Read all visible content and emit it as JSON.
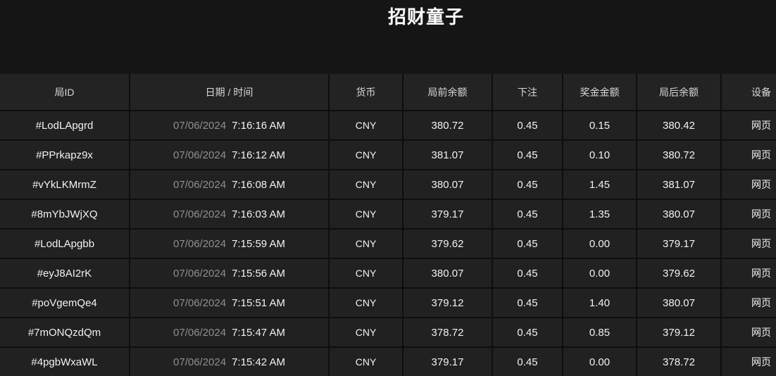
{
  "page": {
    "title": "招财童子"
  },
  "colors": {
    "page_bg": "#151515",
    "gap": "#0e0e0e",
    "header_bg": "#232323",
    "cell_bg": "#212121",
    "text": "#f2f2f2",
    "muted": "#8f8f8f",
    "title": "#ffffff",
    "header_text": "#d8d8d8"
  },
  "table": {
    "columns": [
      {
        "key": "id",
        "label": "局ID"
      },
      {
        "key": "datetime",
        "label": "日期 / 时间"
      },
      {
        "key": "currency",
        "label": "货币"
      },
      {
        "key": "balance_before",
        "label": "局前余额"
      },
      {
        "key": "bet",
        "label": "下注"
      },
      {
        "key": "win",
        "label": "奖金金额"
      },
      {
        "key": "balance_after",
        "label": "局后余额"
      },
      {
        "key": "device",
        "label": "设备"
      }
    ],
    "rows": [
      {
        "id": "#LodLApgrd",
        "date": "07/06/2024",
        "time": "7:16:16 AM",
        "currency": "CNY",
        "balance_before": "380.72",
        "bet": "0.45",
        "win": "0.15",
        "balance_after": "380.42",
        "device": "网页"
      },
      {
        "id": "#PPrkapz9x",
        "date": "07/06/2024",
        "time": "7:16:12 AM",
        "currency": "CNY",
        "balance_before": "381.07",
        "bet": "0.45",
        "win": "0.10",
        "balance_after": "380.72",
        "device": "网页"
      },
      {
        "id": "#vYkLKMrmZ",
        "date": "07/06/2024",
        "time": "7:16:08 AM",
        "currency": "CNY",
        "balance_before": "380.07",
        "bet": "0.45",
        "win": "1.45",
        "balance_after": "381.07",
        "device": "网页"
      },
      {
        "id": "#8mYbJWjXQ",
        "date": "07/06/2024",
        "time": "7:16:03 AM",
        "currency": "CNY",
        "balance_before": "379.17",
        "bet": "0.45",
        "win": "1.35",
        "balance_after": "380.07",
        "device": "网页"
      },
      {
        "id": "#LodLApgbb",
        "date": "07/06/2024",
        "time": "7:15:59 AM",
        "currency": "CNY",
        "balance_before": "379.62",
        "bet": "0.45",
        "win": "0.00",
        "balance_after": "379.17",
        "device": "网页"
      },
      {
        "id": "#eyJ8AI2rK",
        "date": "07/06/2024",
        "time": "7:15:56 AM",
        "currency": "CNY",
        "balance_before": "380.07",
        "bet": "0.45",
        "win": "0.00",
        "balance_after": "379.62",
        "device": "网页"
      },
      {
        "id": "#poVgemQe4",
        "date": "07/06/2024",
        "time": "7:15:51 AM",
        "currency": "CNY",
        "balance_before": "379.12",
        "bet": "0.45",
        "win": "1.40",
        "balance_after": "380.07",
        "device": "网页"
      },
      {
        "id": "#7mONQzdQm",
        "date": "07/06/2024",
        "time": "7:15:47 AM",
        "currency": "CNY",
        "balance_before": "378.72",
        "bet": "0.45",
        "win": "0.85",
        "balance_after": "379.12",
        "device": "网页"
      },
      {
        "id": "#4pgbWxaWL",
        "date": "07/06/2024",
        "time": "7:15:42 AM",
        "currency": "CNY",
        "balance_before": "379.17",
        "bet": "0.45",
        "win": "0.00",
        "balance_after": "378.72",
        "device": "网页"
      }
    ]
  }
}
